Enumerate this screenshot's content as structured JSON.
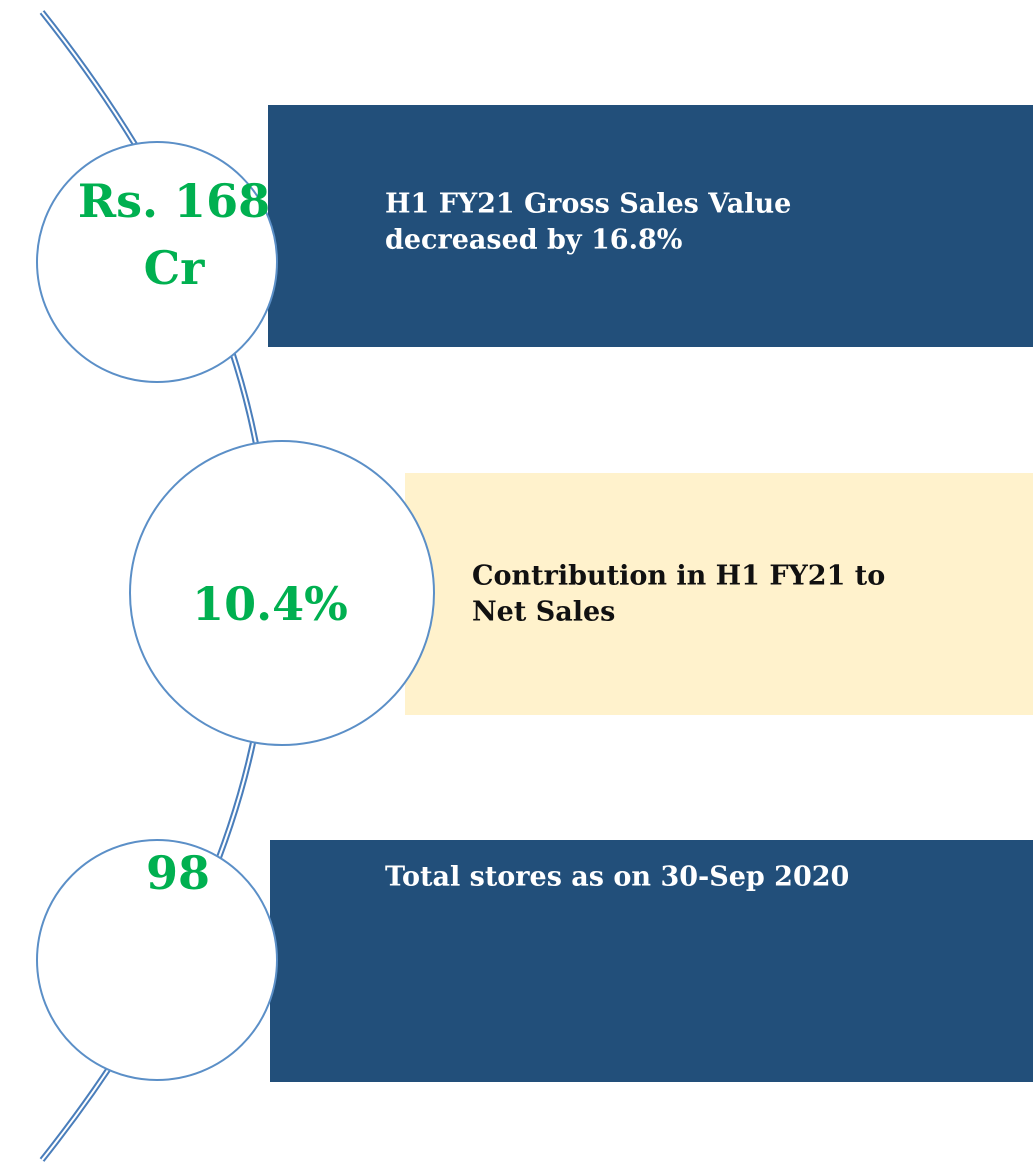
{
  "items": [
    {
      "value": [
        "Rs. 168",
        "Cr"
      ],
      "description": [
        "H1 FY21 Gross Sales Value",
        "decreased by 16.8%"
      ]
    },
    {
      "value": [
        "10.4%"
      ],
      "description": [
        "Contribution in H1 FY21 to",
        "Net Sales"
      ]
    },
    {
      "value": [
        "98"
      ],
      "description": [
        "Total stores as on 30-Sep 2020"
      ]
    }
  ]
}
